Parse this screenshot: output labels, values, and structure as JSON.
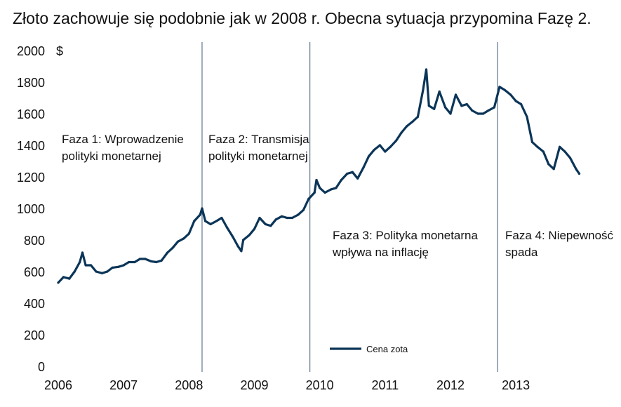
{
  "chart_data": {
    "type": "line",
    "title": "Złoto zachowuje się podobnie jak w 2008 r. Obecna sytuacja przypomina Fazę 2.",
    "ylabel": "$",
    "xlabel": "",
    "ylim": [
      0,
      2000
    ],
    "xlim": [
      2006,
      2014.05
    ],
    "yticks": [
      0,
      200,
      400,
      600,
      800,
      1000,
      1200,
      1400,
      1600,
      1800,
      2000
    ],
    "xticks": [
      "2006",
      "2007",
      "2008",
      "2009",
      "2010",
      "2011",
      "2012",
      "2013"
    ],
    "grid": false,
    "legend_position": "bottom-center",
    "series": [
      {
        "name": "Cena zota",
        "color": "#0b3558",
        "x": [
          2006.0,
          2006.08,
          2006.17,
          2006.25,
          2006.33,
          2006.37,
          2006.42,
          2006.5,
          2006.58,
          2006.67,
          2006.75,
          2006.83,
          2006.92,
          2007.0,
          2007.08,
          2007.17,
          2007.25,
          2007.33,
          2007.42,
          2007.5,
          2007.58,
          2007.67,
          2007.75,
          2007.83,
          2007.92,
          2008.0,
          2008.08,
          2008.17,
          2008.2,
          2008.25,
          2008.33,
          2008.42,
          2008.5,
          2008.58,
          2008.67,
          2008.75,
          2008.8,
          2008.83,
          2008.92,
          2009.0,
          2009.08,
          2009.17,
          2009.25,
          2009.33,
          2009.42,
          2009.5,
          2009.58,
          2009.67,
          2009.75,
          2009.83,
          2009.92,
          2009.95,
          2010.0,
          2010.08,
          2010.17,
          2010.25,
          2010.33,
          2010.42,
          2010.5,
          2010.58,
          2010.67,
          2010.75,
          2010.83,
          2010.92,
          2011.0,
          2011.08,
          2011.17,
          2011.25,
          2011.33,
          2011.42,
          2011.5,
          2011.58,
          2011.63,
          2011.67,
          2011.75,
          2011.83,
          2011.92,
          2012.0,
          2012.08,
          2012.17,
          2012.25,
          2012.33,
          2012.42,
          2012.5,
          2012.58,
          2012.67,
          2012.75,
          2012.83,
          2012.92,
          2013.0,
          2013.08,
          2013.17,
          2013.25,
          2013.33,
          2013.42,
          2013.5,
          2013.58,
          2013.67,
          2013.75,
          2013.83,
          2013.92,
          2013.97
        ],
        "values": [
          530,
          565,
          555,
          600,
          660,
          720,
          640,
          640,
          600,
          590,
          600,
          625,
          630,
          640,
          660,
          660,
          680,
          680,
          665,
          660,
          670,
          720,
          750,
          790,
          810,
          840,
          920,
          960,
          1000,
          920,
          900,
          920,
          940,
          880,
          820,
          760,
          730,
          800,
          830,
          870,
          940,
          900,
          890,
          930,
          950,
          940,
          940,
          960,
          990,
          1060,
          1100,
          1180,
          1130,
          1100,
          1120,
          1130,
          1180,
          1220,
          1230,
          1190,
          1260,
          1330,
          1370,
          1400,
          1360,
          1390,
          1430,
          1480,
          1520,
          1550,
          1580,
          1750,
          1880,
          1650,
          1630,
          1740,
          1640,
          1600,
          1720,
          1650,
          1660,
          1620,
          1600,
          1600,
          1620,
          1640,
          1770,
          1750,
          1720,
          1680,
          1660,
          1580,
          1420,
          1390,
          1360,
          1280,
          1250,
          1390,
          1360,
          1320,
          1250,
          1220
        ]
      }
    ],
    "phase_lines": [
      2008.2,
      2009.85,
      2012.72
    ],
    "annotations": [
      {
        "lines": [
          "Faza 1: Wprowadzenie",
          "polityki monetarnej"
        ]
      },
      {
        "lines": [
          "Faza 2: Transmisja",
          "polityki monetarnej"
        ]
      },
      {
        "lines": [
          "Faza 3: Polityka monetarna",
          "wpływa na inflację"
        ]
      },
      {
        "lines": [
          "Faza 4: Niepewność",
          "spada"
        ]
      }
    ]
  }
}
